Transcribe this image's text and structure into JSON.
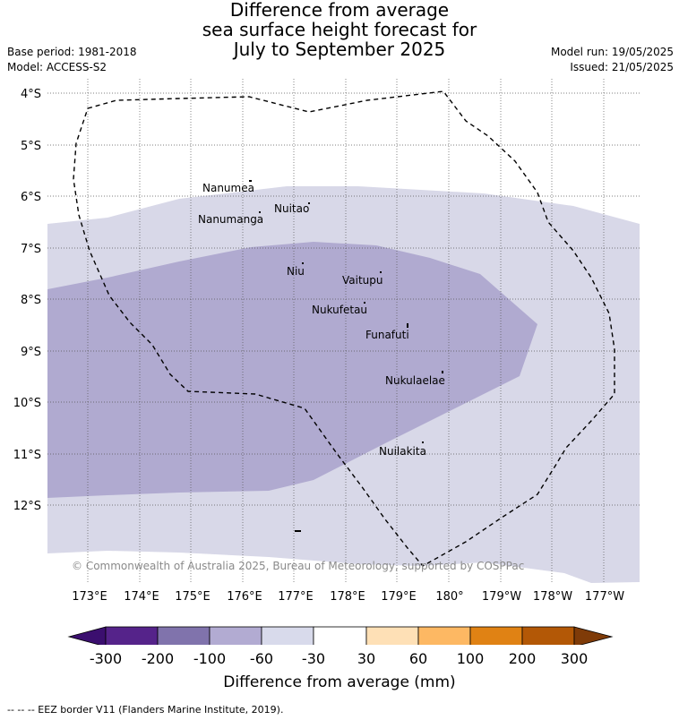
{
  "title": {
    "line1": "Difference from average",
    "line2": "sea surface height forecast for",
    "line3": "July to September 2025"
  },
  "meta": {
    "base_period": "Base period: 1981-2018",
    "model": "Model: ACCESS-S2",
    "model_run": "Model run: 19/05/2025",
    "issued": "Issued: 21/05/2025"
  },
  "map": {
    "lat_labels": [
      "4°S",
      "5°S",
      "6°S",
      "7°S",
      "8°S",
      "9°S",
      "10°S",
      "11°S",
      "12°S"
    ],
    "lon_labels": [
      "173°E",
      "174°E",
      "175°E",
      "176°E",
      "177°E",
      "178°E",
      "179°E",
      "180°",
      "179°W",
      "178°W",
      "177°W"
    ],
    "places": [
      "Nanumea",
      "Nuitao",
      "Nanumanga",
      "Niu",
      "Vaitupu",
      "Nukufetau",
      "Funafuti",
      "Nukulaelae",
      "Nuilakita"
    ],
    "credit": "© Commonwealth of Australia 2025, Bureau of Meteorology, supported by COSPPac",
    "colors": {
      "light_band": "#d8d8e8",
      "mid_band": "#b0aad0"
    }
  },
  "colorbar": {
    "ticks": [
      "-300",
      "-200",
      "-100",
      "-60",
      "-30",
      "30",
      "60",
      "100",
      "200",
      "300"
    ],
    "colors": [
      "#3b0f6f",
      "#55238a",
      "#8073ac",
      "#b2abd2",
      "#d8daeb",
      "#ffffff",
      "#fee0b6",
      "#fdb863",
      "#e08214",
      "#b35806",
      "#7f3b08"
    ],
    "label": "Difference from average (mm)"
  },
  "footnote": "-- -- -- EEZ border V11 (Flanders Marine Institute, 2019)."
}
